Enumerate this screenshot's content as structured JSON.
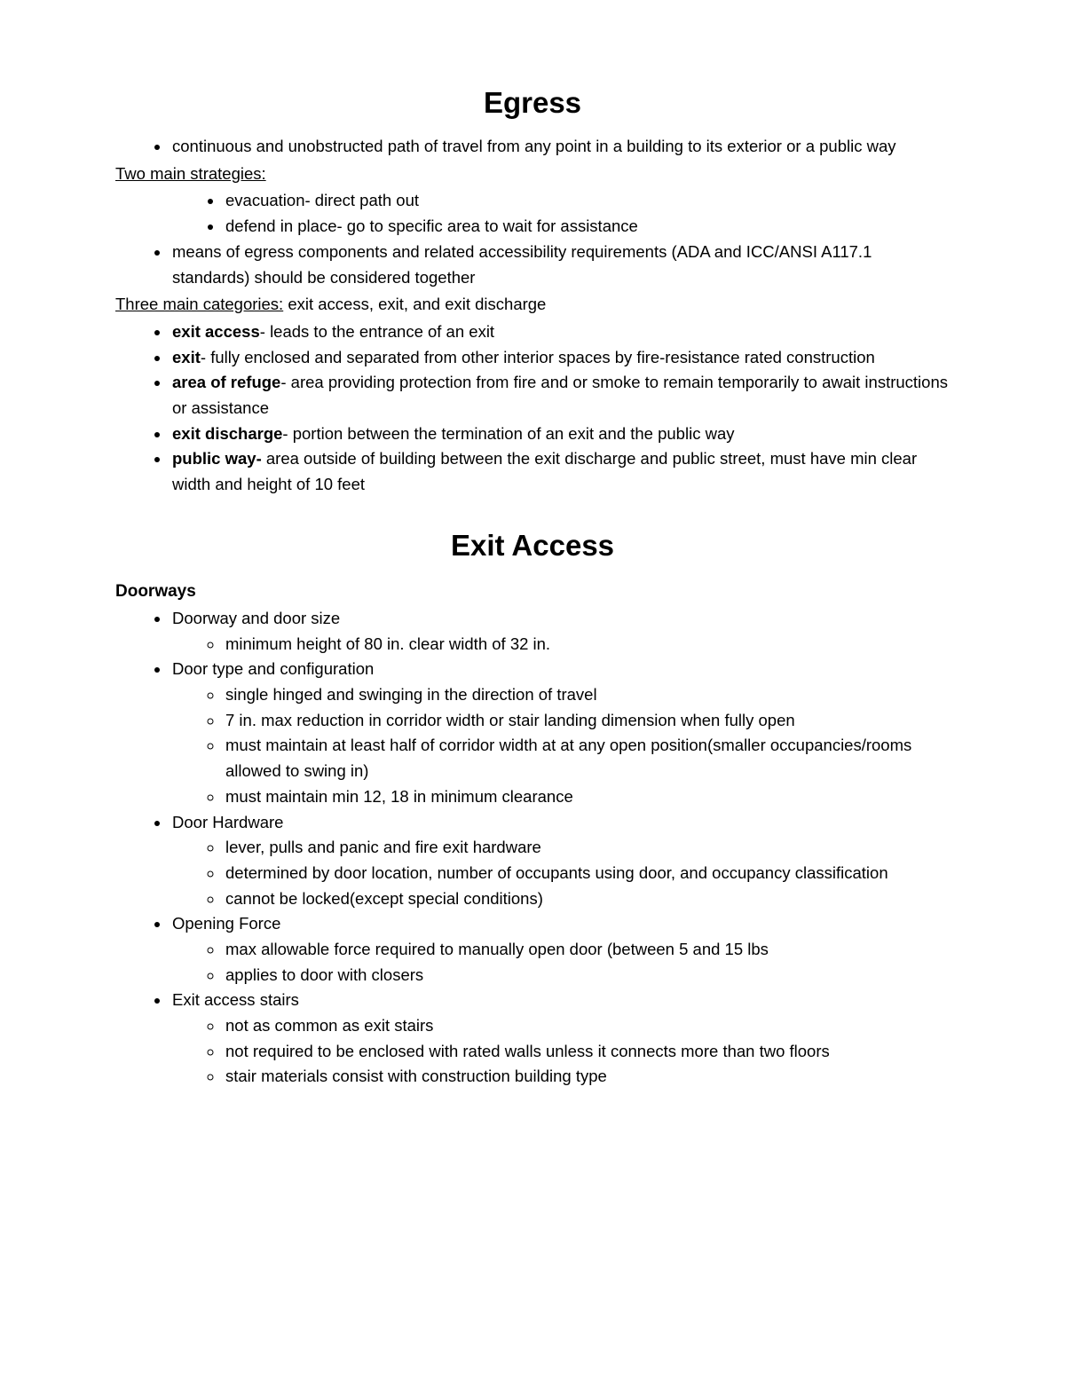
{
  "page": {
    "bg_color": "#ffffff",
    "text_color": "#000000",
    "body_fontsize_pt": 14,
    "h1_fontsize_pt": 25,
    "font_family": "Arial"
  },
  "egress": {
    "title": "Egress",
    "intro_bullet": "continuous and unobstructed path of travel from any point in a building to its exterior or a public way",
    "strategies_label": "Two main strategies:",
    "strategies": [
      "evacuation- direct path out",
      "defend in place- go to specific area to wait for assistance"
    ],
    "accessibility_bullet": "means of egress components and related accessibility requirements (ADA and ICC/ANSI A117.1 standards) should be considered together",
    "categories_label": "Three main categories:",
    "categories_tail": " exit access, exit, and exit discharge",
    "defs": [
      {
        "term": "exit access",
        "text": "- leads to the entrance of an exit"
      },
      {
        "term": "exit",
        "text": "- fully enclosed and separated from other interior spaces by fire-resistance rated construction"
      },
      {
        "term": "area of refuge",
        "text": "- area providing protection from fire and or smoke to remain temporarily to await instructions or assistance"
      },
      {
        "term": "exit discharge",
        "text": "- portion between the termination of an exit and the public way"
      },
      {
        "term": "public way- ",
        "text": "area outside of building between the exit discharge and public street, must have min clear width and height of 10 feet"
      }
    ]
  },
  "exit_access": {
    "title": "Exit Access",
    "doorways_label": "Doorways",
    "items": [
      {
        "head": "Doorway and door size",
        "subs": [
          "minimum height of 80 in. clear width of 32 in."
        ]
      },
      {
        "head": "Door type and configuration",
        "subs": [
          "single hinged and swinging in the direction of travel",
          "7 in. max reduction in corridor width or stair landing dimension when fully open",
          "must maintain at least half of corridor width at at any open position(smaller occupancies/rooms allowed to swing in)",
          "must maintain min 12, 18 in minimum clearance"
        ]
      },
      {
        "head": "Door Hardware",
        "subs": [
          "lever, pulls and panic and fire exit hardware",
          "determined by door location, number of occupants using door, and occupancy classification",
          "cannot be locked(except special conditions)"
        ]
      },
      {
        "head": "Opening Force",
        "subs": [
          "max allowable force required to manually open door (between 5 and 15 lbs",
          "applies to door with closers"
        ]
      },
      {
        "head": "Exit access stairs",
        "subs": [
          "not as common as exit stairs",
          "not required to be enclosed with rated walls unless it connects more than two floors",
          "stair materials consist with construction building type"
        ]
      }
    ]
  }
}
